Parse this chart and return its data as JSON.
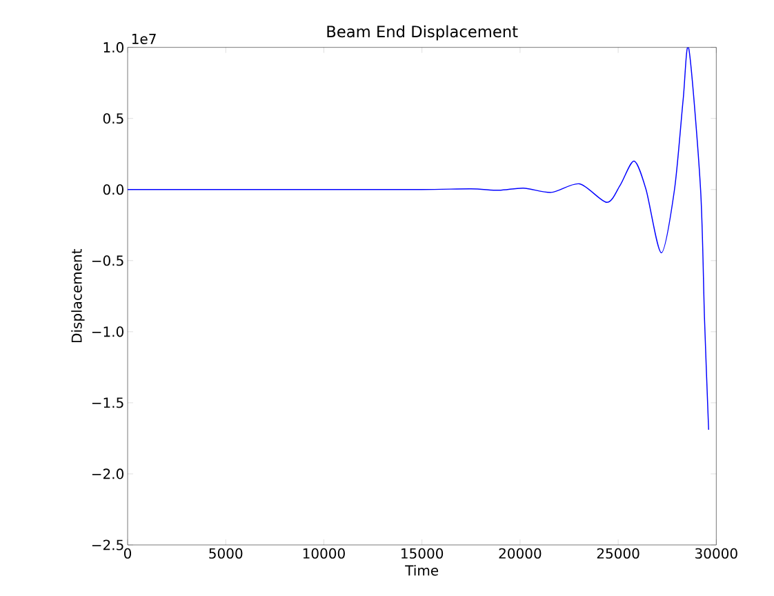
{
  "chart_data": {
    "type": "line",
    "title": "Beam End Displacement",
    "xlabel": "Time",
    "ylabel": "Displacement",
    "annotations": [
      "1e7"
    ],
    "xlim": [
      0,
      30000
    ],
    "xticks": [
      0,
      5000,
      10000,
      15000,
      20000,
      25000,
      30000
    ],
    "ylim": [
      -2.5,
      1.0
    ],
    "yticks": [
      {
        "value": -2.5,
        "label": "−2.5"
      },
      {
        "value": -2.0,
        "label": "−2.0"
      },
      {
        "value": -1.5,
        "label": "−1.5"
      },
      {
        "value": -1.0,
        "label": "−1.0"
      },
      {
        "value": -0.5,
        "label": "−0.5"
      },
      {
        "value": 0.0,
        "label": "0.0"
      },
      {
        "value": 0.5,
        "label": "0.5"
      },
      {
        "value": 1.0,
        "label": "1.0"
      }
    ],
    "series": [
      {
        "color": "#0000ff",
        "x": [
          0,
          5000,
          10000,
          15000,
          17500,
          18920,
          20180,
          21600,
          23030,
          24420,
          25100,
          25810,
          26420,
          27200,
          27870,
          28310,
          28600,
          29200,
          29400,
          29610
        ],
        "values": [
          0,
          0,
          0,
          0,
          0.005,
          -0.005,
          0.01,
          -0.02,
          0.04,
          -0.09,
          0.03,
          0.2,
          0,
          -0.445,
          0,
          0.63,
          0.99,
          0,
          -0.91,
          -1.69
        ]
      }
    ]
  }
}
